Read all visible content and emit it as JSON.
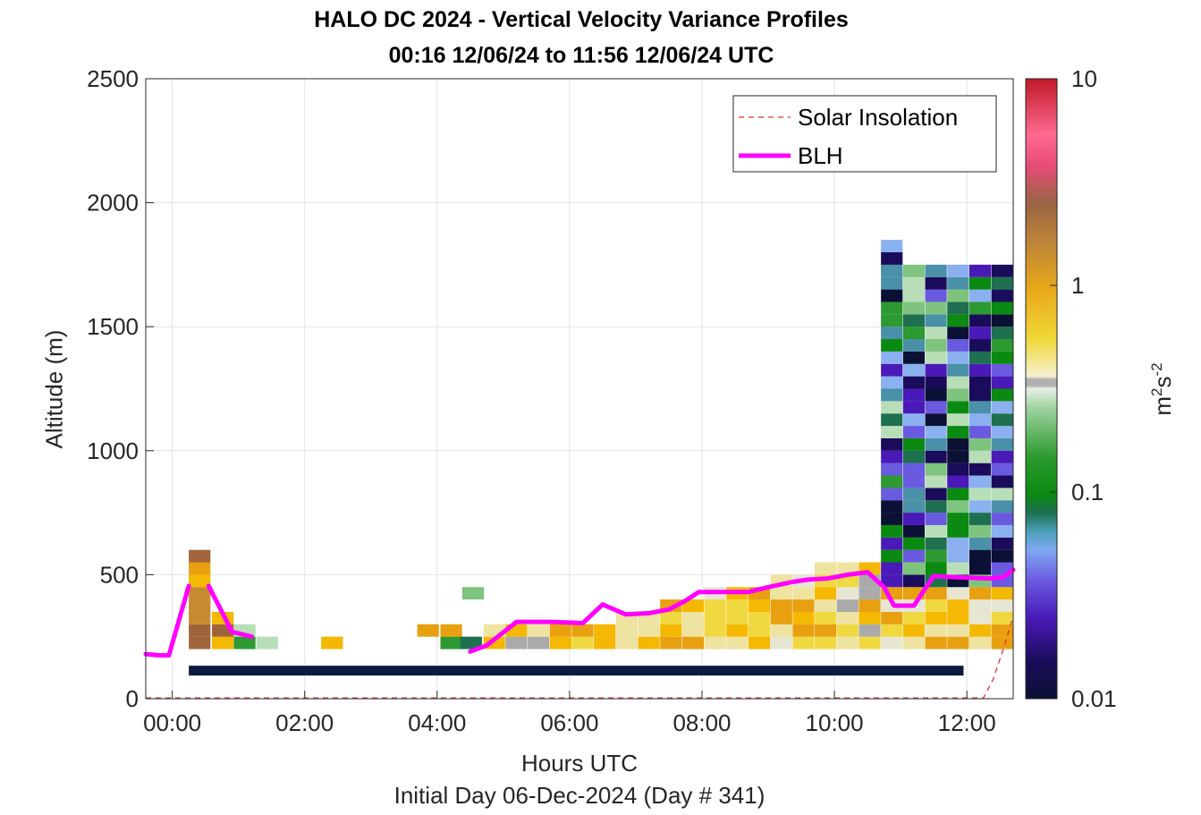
{
  "chart_data": {
    "type": "heatmap",
    "title": "HALO DC 2024 - Vertical Velocity Variance Profiles",
    "subtitle": "00:16 12/06/24 to 11:56 12/06/24  UTC",
    "xlabel": "Hours UTC",
    "xsublabel": "Initial Day 06-Dec-2024 (Day # 341)",
    "ylabel": "Altitude (m)",
    "colorbar_label": {
      "base": "m",
      "sup1": "2",
      "mid": "s",
      "sup2": "-2"
    },
    "xlim_hours": [
      -0.4,
      12.7
    ],
    "ylim": [
      0,
      2500
    ],
    "x_ticks": [
      {
        "value": 0,
        "label": "00:00"
      },
      {
        "value": 2,
        "label": "02:00"
      },
      {
        "value": 4,
        "label": "04:00"
      },
      {
        "value": 6,
        "label": "06:00"
      },
      {
        "value": 8,
        "label": "08:00"
      },
      {
        "value": 10,
        "label": "10:00"
      },
      {
        "value": 12,
        "label": "12:00"
      }
    ],
    "y_ticks": [
      0,
      500,
      1000,
      1500,
      2000,
      2500
    ],
    "colorbar": {
      "scale": "log",
      "range": [
        0.01,
        10
      ],
      "ticks": [
        {
          "value": 0.01,
          "label": "0.01"
        },
        {
          "value": 0.1,
          "label": "0.1"
        },
        {
          "value": 1,
          "label": "1"
        },
        {
          "value": 10,
          "label": "10"
        }
      ]
    },
    "grid": true,
    "legend": {
      "placement": "top-right",
      "entries": [
        {
          "label": "Solar Insolation",
          "style": "dashed",
          "color": "#e03030"
        },
        {
          "label": "BLH",
          "style": "solid",
          "color": "#ff00ff"
        }
      ]
    },
    "series": [
      {
        "name": "BLH",
        "color": "#ff00ff",
        "segments": [
          [
            [
              -0.4,
              180
            ],
            [
              -0.2,
              175
            ],
            [
              -0.05,
              175
            ],
            [
              0.25,
              455
            ]
          ],
          [
            [
              0.55,
              455
            ],
            [
              0.75,
              350
            ],
            [
              0.9,
              270
            ],
            [
              1.2,
              250
            ]
          ],
          [
            [
              4.5,
              190
            ],
            [
              4.75,
              215
            ],
            [
              5.2,
              310
            ],
            [
              5.7,
              310
            ],
            [
              6.2,
              305
            ],
            [
              6.5,
              380
            ],
            [
              6.85,
              340
            ],
            [
              7.2,
              345
            ],
            [
              7.5,
              360
            ],
            [
              7.75,
              395
            ],
            [
              7.95,
              430
            ],
            [
              8.3,
              430
            ],
            [
              8.7,
              430
            ],
            [
              9.0,
              450
            ],
            [
              9.35,
              470
            ],
            [
              9.6,
              480
            ],
            [
              9.9,
              485
            ],
            [
              10.2,
              500
            ],
            [
              10.5,
              510
            ],
            [
              10.75,
              450
            ],
            [
              10.9,
              375
            ],
            [
              11.2,
              375
            ],
            [
              11.5,
              495
            ],
            [
              11.85,
              490
            ],
            [
              12.35,
              485
            ],
            [
              12.55,
              490
            ],
            [
              12.7,
              520
            ]
          ]
        ]
      },
      {
        "name": "Solar Insolation",
        "color": "#e03030",
        "points": [
          [
            -0.4,
            3
          ],
          [
            12.25,
            3
          ],
          [
            12.4,
            80
          ],
          [
            12.55,
            200
          ],
          [
            12.7,
            330
          ]
        ]
      }
    ],
    "baseline_bar": {
      "x_start": 0.25,
      "x_end": 11.95,
      "altitude": 115,
      "color": "#0b1a40"
    }
  }
}
